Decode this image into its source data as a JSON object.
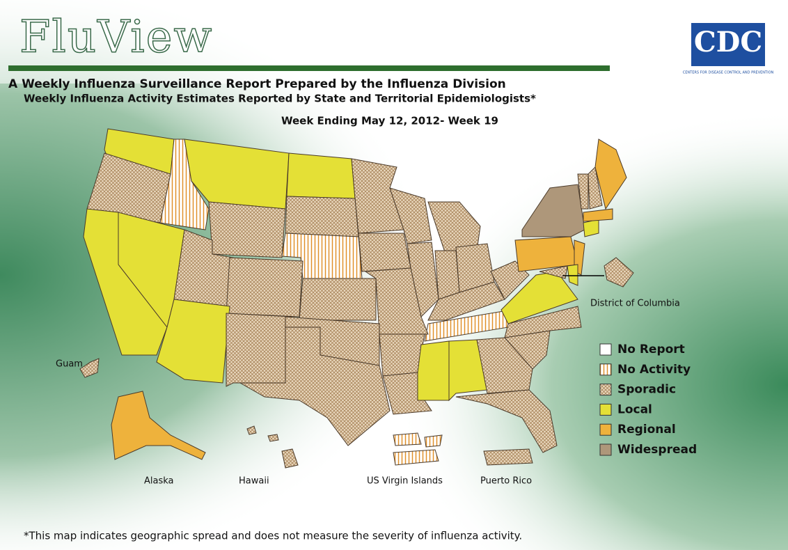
{
  "header": {
    "title": "FluView",
    "subtitle": "A Weekly Influenza Surveillance Report Prepared by the Influenza Division",
    "subtitle2": "Weekly Influenza Activity Estimates Reported by State and Territorial Epidemiologists*",
    "week": "Week Ending May 12, 2012- Week 19"
  },
  "logo": {
    "text": "CDC",
    "tagline": "CENTERS FOR DISEASE CONTROL AND PREVENTION"
  },
  "map": {
    "labels": {
      "dc": "District of Columbia",
      "guam": "Guam",
      "alaska": "Alaska",
      "hawaii": "Hawaii",
      "usvi": "US Virgin Islands",
      "pr": "Puerto Rico"
    }
  },
  "legend": {
    "items": [
      {
        "label": "No Report",
        "color": "#ffffff",
        "pattern": "solid"
      },
      {
        "label": "No Activity",
        "color": "#e0902a",
        "pattern": "stripes"
      },
      {
        "label": "Sporadic",
        "color": "#a8845a",
        "pattern": "crosshatch"
      },
      {
        "label": "Local",
        "color": "#e4e036",
        "pattern": "solid"
      },
      {
        "label": "Regional",
        "color": "#eeb23c",
        "pattern": "solid"
      },
      {
        "label": "Widespread",
        "color": "#ae977a",
        "pattern": "solid"
      }
    ]
  },
  "footnote": "*This map indicates geographic spread and does not measure the severity of influenza activity."
}
